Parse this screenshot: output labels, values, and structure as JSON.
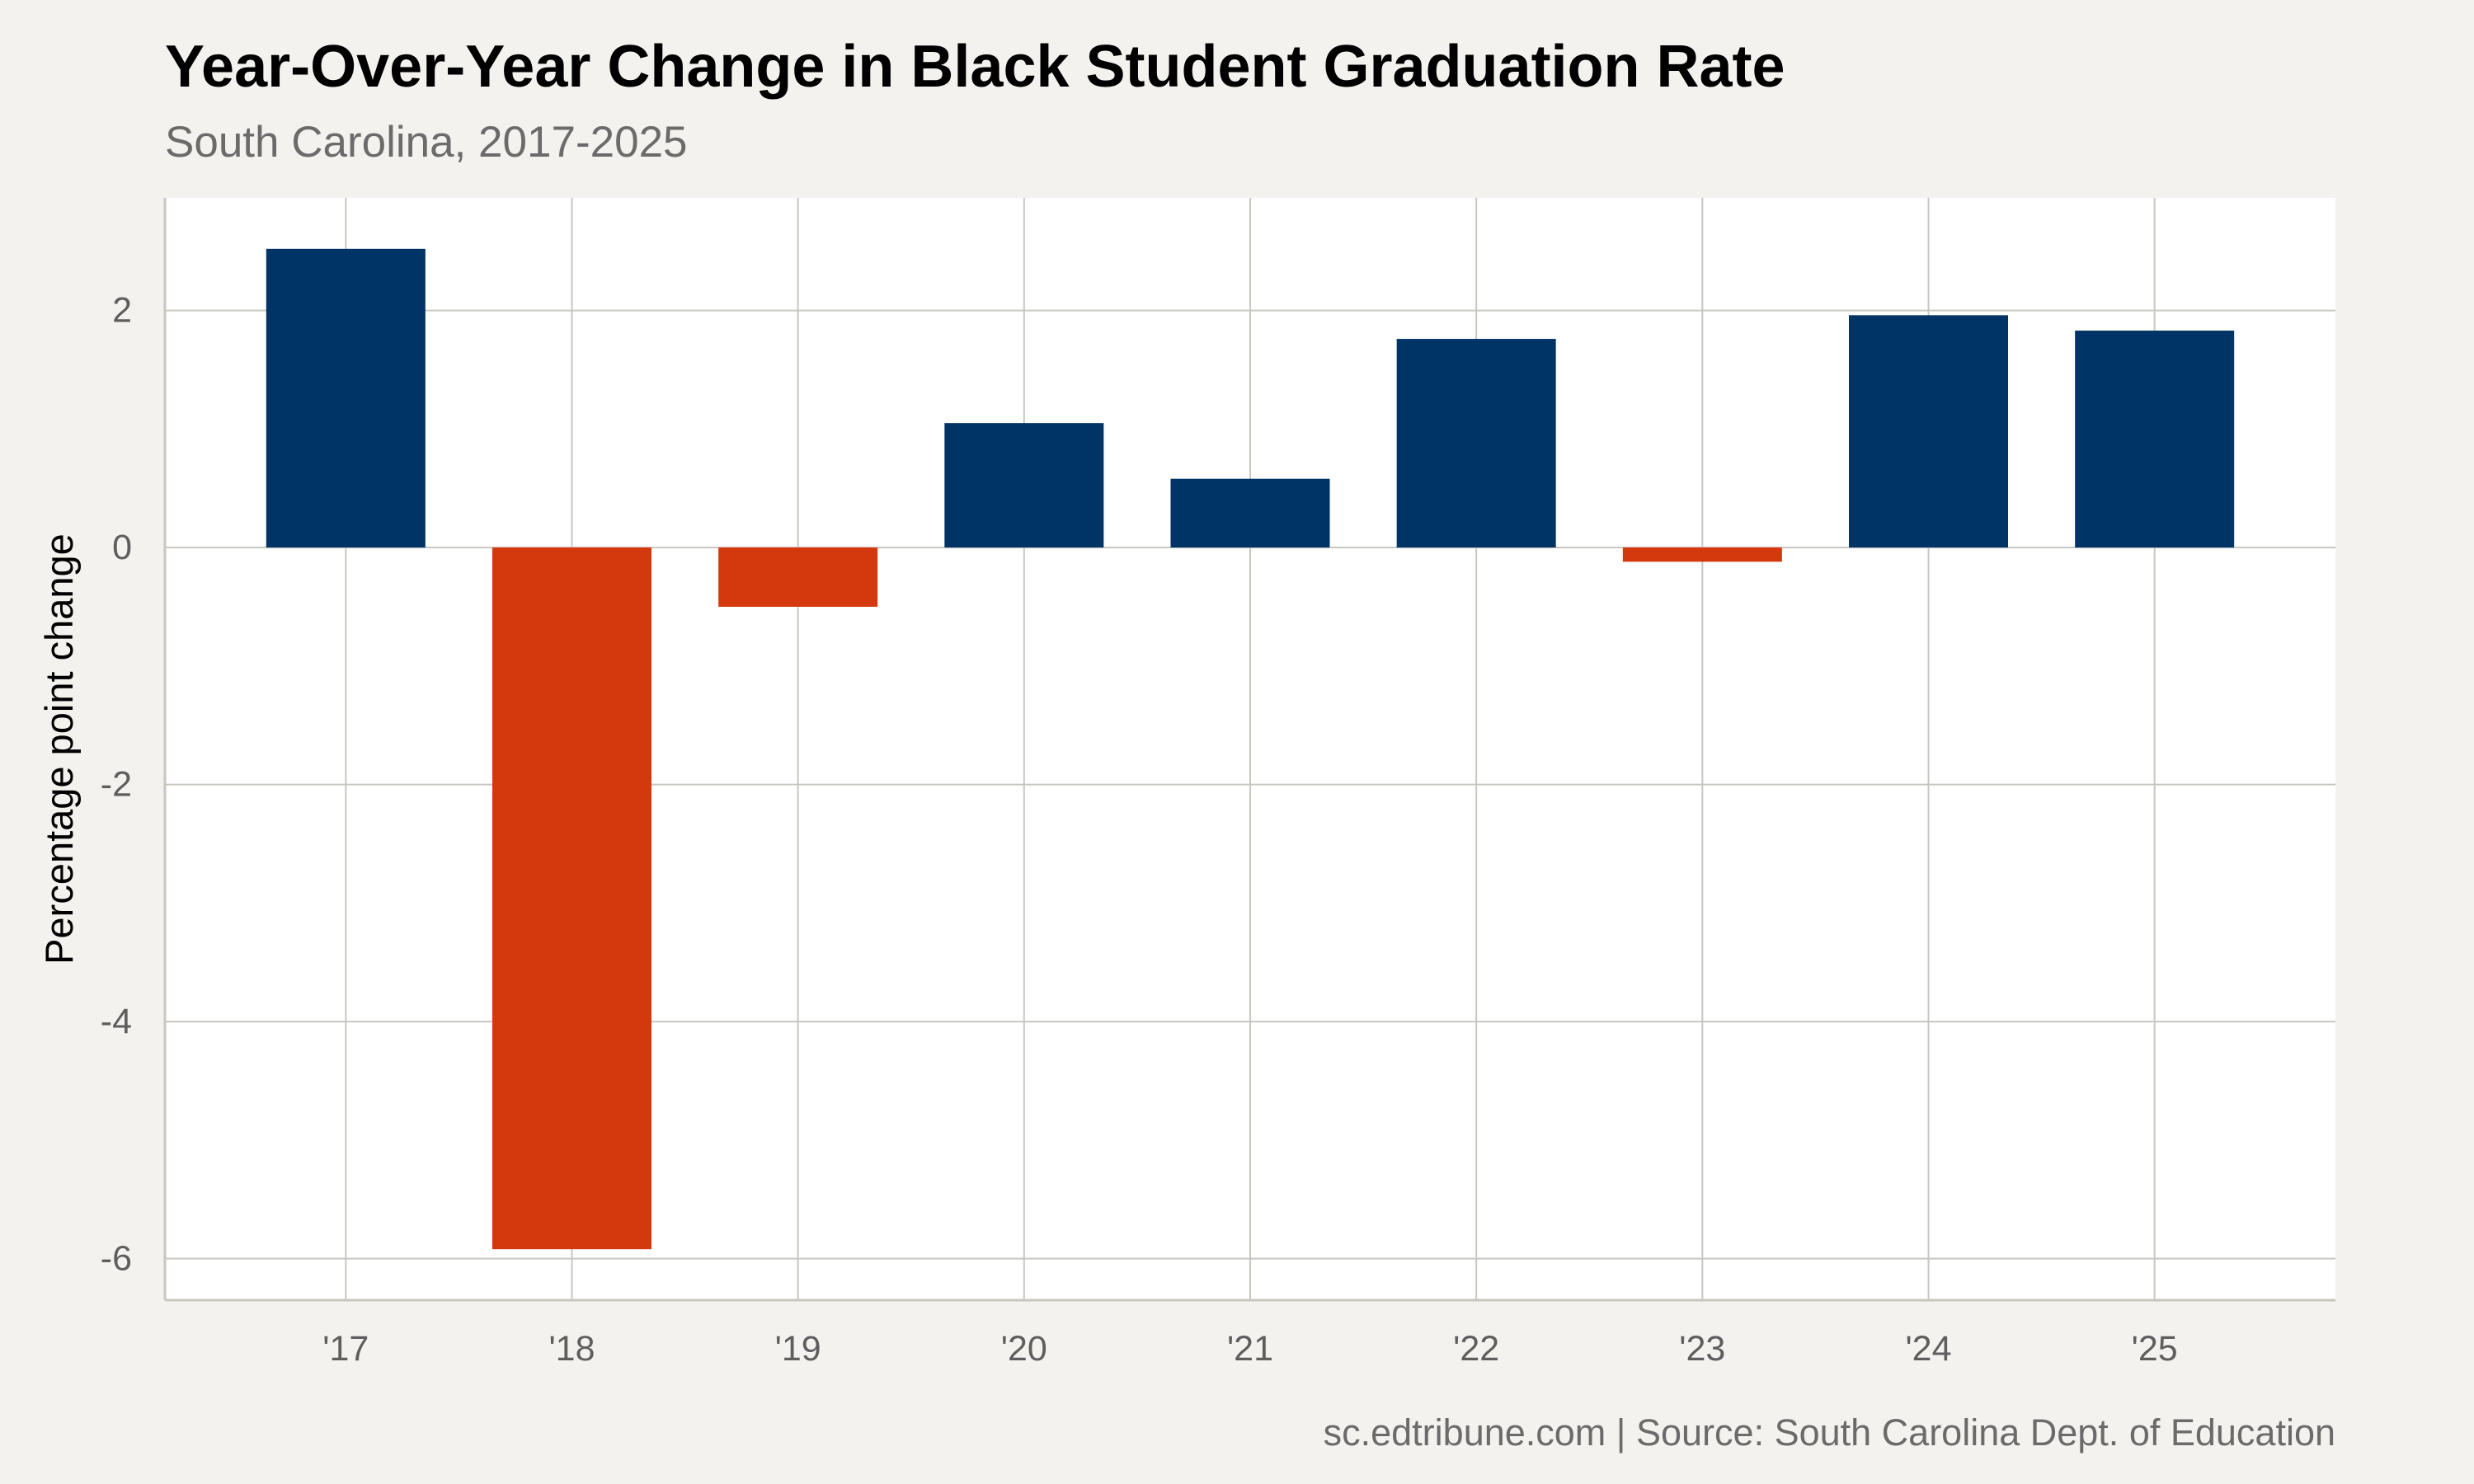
{
  "header": {
    "title": "Year-Over-Year Change in Black Student Graduation Rate",
    "subtitle": "South Carolina, 2017-2025"
  },
  "footer": {
    "caption": "sc.edtribune.com | Source: South Carolina Dept. of Education"
  },
  "colors": {
    "positive": "#003366",
    "negative": "#d4380d",
    "grid": "#c8c6c0",
    "panel": "#ffffff",
    "background": "#f4f2ee"
  },
  "chart_data": {
    "type": "bar",
    "categories": [
      "'17",
      "'18",
      "'19",
      "'20",
      "'21",
      "'22",
      "'23",
      "'24",
      "'25"
    ],
    "values": [
      2.52,
      -5.92,
      -0.5,
      1.05,
      0.58,
      1.76,
      -0.12,
      1.96,
      1.83
    ],
    "title": "Year-Over-Year Change in Black Student Graduation Rate",
    "subtitle": "South Carolina, 2017-2025",
    "xlabel": "",
    "ylabel": "Percentage point change",
    "ylim": [
      -6.35,
      2.95
    ],
    "yticks": [
      -6,
      -4,
      -2,
      0,
      2
    ],
    "yticklabels": [
      "-6",
      "-4",
      "-2",
      "0",
      "2"
    ],
    "grid": true,
    "legend": "none"
  }
}
